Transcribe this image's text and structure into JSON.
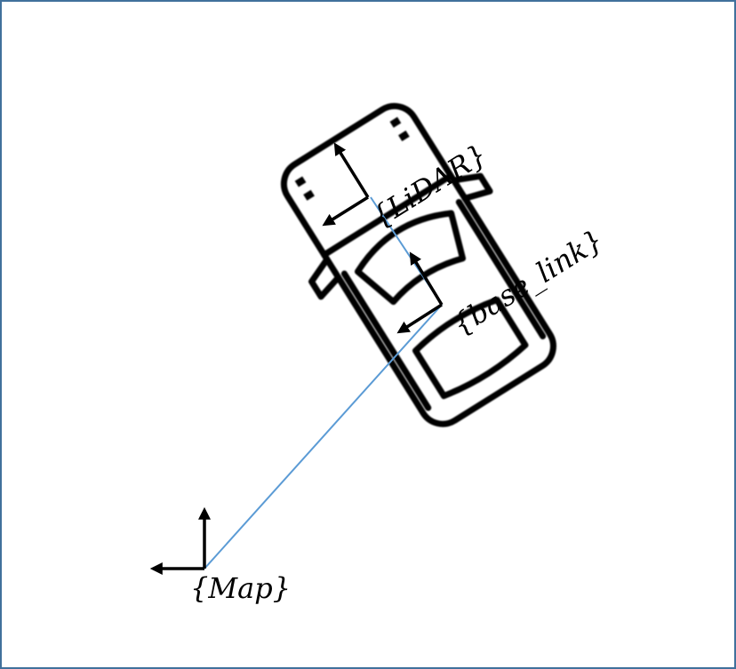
{
  "diagram": {
    "colors": {
      "frame_border": "#41719c",
      "transform_line": "#5b9bd5",
      "ink": "#000000"
    },
    "frames": {
      "map": {
        "label": "{Map}"
      },
      "base_link": {
        "label": "{base_link}"
      },
      "lidar": {
        "label": "{LiDAR}"
      }
    },
    "vehicle": {
      "icon": "car-top-view-icon"
    }
  }
}
